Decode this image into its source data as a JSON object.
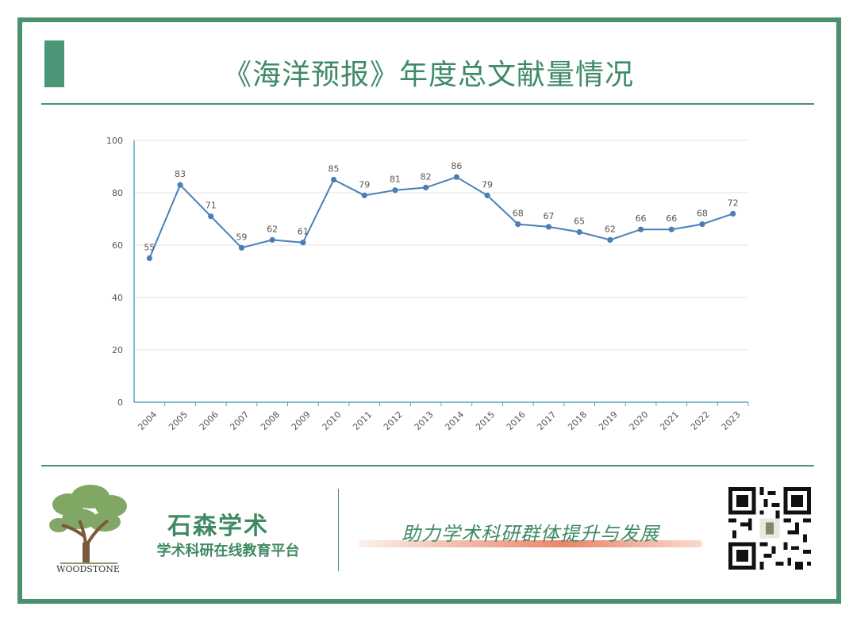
{
  "page": {
    "title": "《海洋预报》年度总文献量情况",
    "brand_name": "石森学术",
    "brand_sub": "学术科研在线教育平台",
    "slogan": "助力学术科研群体提升与发展",
    "logo_text": "WOODSTONE",
    "accent_color": "#4a8f70"
  },
  "chart_data": {
    "type": "line",
    "title": "",
    "xlabel": "",
    "ylabel": "",
    "categories": [
      "2004",
      "2005",
      "2006",
      "2007",
      "2008",
      "2009",
      "2010",
      "2011",
      "2012",
      "2013",
      "2014",
      "2015",
      "2016",
      "2017",
      "2018",
      "2019",
      "2020",
      "2021",
      "2022",
      "2023"
    ],
    "series": [
      {
        "values": [
          55,
          83,
          71,
          59,
          62,
          61,
          85,
          79,
          81,
          82,
          86,
          79,
          68,
          67,
          65,
          62,
          66,
          66,
          68,
          72
        ],
        "color": "#4a7fb5"
      }
    ],
    "ylim": [
      0,
      100
    ],
    "yticks": [
      0,
      20,
      40,
      60,
      80,
      100
    ],
    "grid": true,
    "data_labels": true
  }
}
